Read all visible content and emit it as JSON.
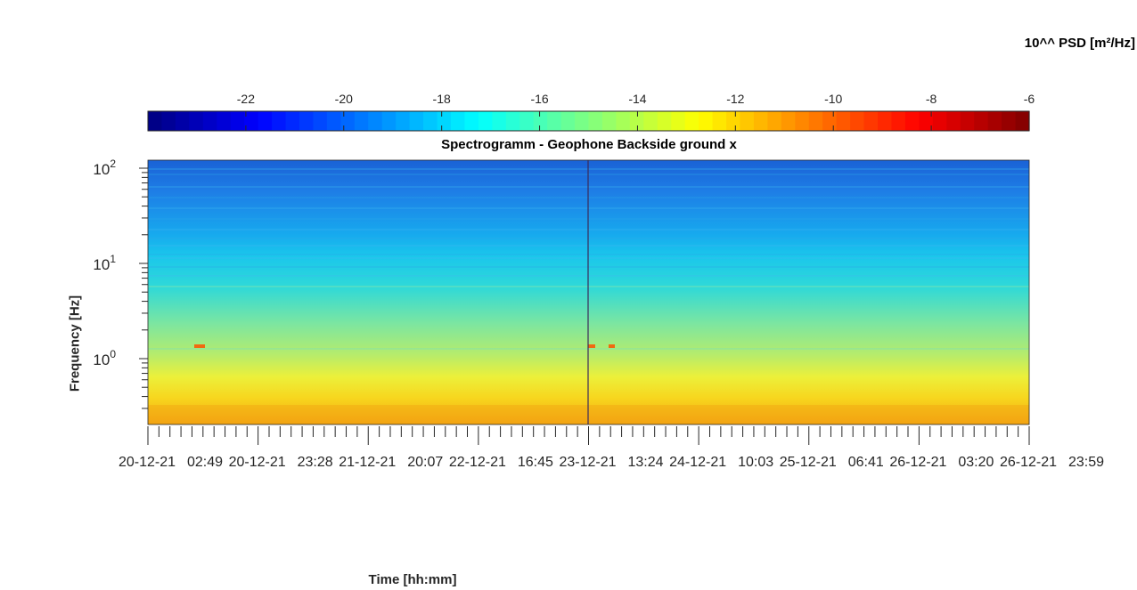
{
  "chart_data": {
    "type": "heatmap",
    "title": "Spectrogramm - Geophone Backside ground x",
    "xlabel": "Time [hh:mm]",
    "ylabel": "Frequency [Hz]",
    "y_scale": "log",
    "y_ticks": [
      {
        "base": "10",
        "exp": "0"
      },
      {
        "base": "10",
        "exp": "1"
      },
      {
        "base": "10",
        "exp": "2"
      }
    ],
    "x_ticks": [
      {
        "date": "20-12-21",
        "time": "02:49"
      },
      {
        "date": "20-12-21",
        "time": "23:28"
      },
      {
        "date": "21-12-21",
        "time": "20:07"
      },
      {
        "date": "22-12-21",
        "time": "16:45"
      },
      {
        "date": "23-12-21",
        "time": "13:24"
      },
      {
        "date": "24-12-21",
        "time": "10:03"
      },
      {
        "date": "25-12-21",
        "time": "06:41"
      },
      {
        "date": "26-12-21",
        "time": "03:20"
      },
      {
        "date": "26-12-21",
        "time": "23:59"
      }
    ],
    "colorbar": {
      "title": "10^^ PSD [m²/Hz]",
      "range": [
        -24,
        -6
      ],
      "ticks": [
        "-22",
        "-20",
        "-18",
        "-16",
        "-14",
        "-12",
        "-10",
        "-8",
        "-6"
      ],
      "colormap": "jet"
    },
    "bands": [
      {
        "freq_range_hz": [
          10,
          100
        ],
        "psd_log10": -19
      },
      {
        "freq_range_hz": [
          1.5,
          10
        ],
        "psd_log10": -16.5
      },
      {
        "freq_range_hz": [
          0.5,
          1.5
        ],
        "psd_log10": -14.5
      },
      {
        "freq_range_hz": [
          0.2,
          0.5
        ],
        "psd_log10": -12
      }
    ]
  }
}
